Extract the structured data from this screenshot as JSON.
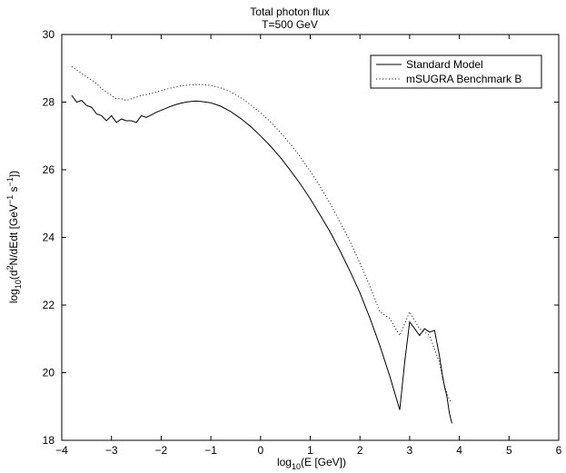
{
  "chart_data": {
    "type": "line",
    "title": [
      "Total photon flux",
      "T=500 GeV"
    ],
    "xlabel": {
      "base": "log",
      "sub": "10",
      "rest": "(E [GeV])"
    },
    "ylabel": {
      "base": "log",
      "sub": "10",
      "rest1": "(d",
      "sup2": "2",
      "rest2": "N/dEdt [GeV",
      "supA": "−1",
      "rest3": " s",
      "supB": "−1",
      "rest4": "])"
    },
    "xlim": [
      -4,
      6
    ],
    "ylim": [
      18,
      30
    ],
    "x_ticks": [
      -4,
      -3,
      -2,
      -1,
      0,
      1,
      2,
      3,
      4,
      5,
      6
    ],
    "y_ticks": [
      18,
      20,
      22,
      24,
      26,
      28,
      30
    ],
    "x_tick_labels": [
      "−4",
      "−3",
      "−2",
      "−1",
      "0",
      "1",
      "2",
      "3",
      "4",
      "5",
      "6"
    ],
    "y_tick_labels": [
      "18",
      "20",
      "22",
      "24",
      "26",
      "28",
      "30"
    ],
    "grid": false,
    "legend_position": "top-right",
    "series": [
      {
        "name": "Standard Model",
        "style": "solid",
        "color": "#000000",
        "x": [
          -3.8,
          -3.7,
          -3.6,
          -3.5,
          -3.4,
          -3.3,
          -3.2,
          -3.1,
          -3.0,
          -2.9,
          -2.8,
          -2.7,
          -2.6,
          -2.5,
          -2.4,
          -2.3,
          -2.2,
          -2.1,
          -2.0,
          -1.9,
          -1.8,
          -1.7,
          -1.6,
          -1.5,
          -1.4,
          -1.3,
          -1.2,
          -1.1,
          -1.0,
          -0.9,
          -0.8,
          -0.7,
          -0.6,
          -0.5,
          -0.4,
          -0.3,
          -0.2,
          -0.1,
          0.0,
          0.2,
          0.4,
          0.6,
          0.8,
          1.0,
          1.2,
          1.4,
          1.6,
          1.8,
          2.0,
          2.2,
          2.4,
          2.6,
          2.8,
          2.9,
          3.0,
          3.1,
          3.2,
          3.3,
          3.4,
          3.5,
          3.6,
          3.65,
          3.7,
          3.75,
          3.8,
          3.85
        ],
        "y": [
          28.2,
          28.0,
          28.05,
          27.9,
          27.85,
          27.65,
          27.6,
          27.45,
          27.6,
          27.4,
          27.5,
          27.45,
          27.45,
          27.4,
          27.6,
          27.55,
          27.62,
          27.7,
          27.76,
          27.82,
          27.88,
          27.93,
          27.97,
          28.0,
          28.02,
          28.03,
          28.02,
          28.0,
          27.98,
          27.93,
          27.88,
          27.8,
          27.72,
          27.62,
          27.52,
          27.4,
          27.28,
          27.14,
          27.0,
          26.7,
          26.36,
          25.98,
          25.58,
          25.14,
          24.66,
          24.16,
          23.6,
          23.0,
          22.36,
          21.62,
          20.8,
          19.9,
          18.9,
          20.3,
          21.5,
          21.3,
          21.1,
          21.3,
          21.2,
          21.25,
          20.5,
          20.0,
          19.6,
          19.3,
          18.8,
          18.5
        ]
      },
      {
        "name": "mSUGRA Benchmark B",
        "style": "dotted",
        "color": "#000000",
        "x": [
          -3.8,
          -3.7,
          -3.6,
          -3.5,
          -3.4,
          -3.3,
          -3.2,
          -3.1,
          -3.0,
          -2.9,
          -2.8,
          -2.7,
          -2.6,
          -2.5,
          -2.4,
          -2.3,
          -2.2,
          -2.1,
          -2.0,
          -1.9,
          -1.8,
          -1.7,
          -1.6,
          -1.5,
          -1.4,
          -1.3,
          -1.2,
          -1.1,
          -1.0,
          -0.9,
          -0.8,
          -0.7,
          -0.6,
          -0.5,
          -0.4,
          -0.3,
          -0.2,
          -0.1,
          0.0,
          0.2,
          0.4,
          0.6,
          0.8,
          1.0,
          1.2,
          1.4,
          1.6,
          1.8,
          2.0,
          2.2,
          2.4,
          2.6,
          2.8,
          3.0,
          3.2,
          3.4,
          3.6,
          3.7,
          3.8,
          3.85
        ],
        "y": [
          29.05,
          28.95,
          28.85,
          28.75,
          28.65,
          28.55,
          28.4,
          28.3,
          28.2,
          28.1,
          28.1,
          28.05,
          28.1,
          28.15,
          28.2,
          28.22,
          28.26,
          28.3,
          28.34,
          28.38,
          28.42,
          28.45,
          28.48,
          28.5,
          28.51,
          28.52,
          28.52,
          28.51,
          28.49,
          28.46,
          28.42,
          28.37,
          28.3,
          28.22,
          28.13,
          28.03,
          27.92,
          27.8,
          27.68,
          27.42,
          27.1,
          26.76,
          26.38,
          25.96,
          25.5,
          25.0,
          24.46,
          23.88,
          23.24,
          22.56,
          21.8,
          21.6,
          21.1,
          21.8,
          21.3,
          21.1,
          20.3,
          19.6,
          19.2,
          19.1
        ]
      }
    ]
  }
}
